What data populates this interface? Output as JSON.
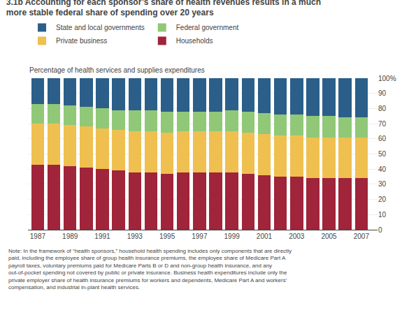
{
  "chart_data": {
    "type": "bar",
    "stacked": true,
    "title": "3.1b Accounting for each sponsor’s share of health revenues results in a much\nmore stable federal share of spending over 20 years",
    "ylabel": "Percentage of health services and supplies expenditures",
    "x": [
      1987,
      1988,
      1989,
      1990,
      1991,
      1992,
      1993,
      1994,
      1995,
      1996,
      1997,
      1998,
      1999,
      2000,
      2001,
      2002,
      2003,
      2004,
      2005,
      2006,
      2007
    ],
    "series": [
      {
        "name": "Households",
        "color": "#A0243A",
        "values": [
          43,
          43,
          42,
          41,
          40,
          39,
          38,
          38,
          37,
          38,
          38,
          38,
          38,
          37,
          36,
          35,
          35,
          34,
          34,
          34,
          34
        ]
      },
      {
        "name": "Private business",
        "color": "#EFC050",
        "values": [
          27,
          27,
          27,
          27,
          27,
          27,
          27,
          27,
          27,
          27,
          27,
          27,
          27,
          27,
          27,
          27,
          27,
          27,
          27,
          27,
          27
        ]
      },
      {
        "name": "Federal government",
        "color": "#90C878",
        "values": [
          13,
          13,
          13,
          13,
          13,
          13,
          14,
          14,
          14,
          13,
          13,
          13,
          14,
          14,
          14,
          14,
          14,
          14,
          14,
          13,
          13
        ]
      },
      {
        "name": "State and local governments",
        "color": "#2B5F8A",
        "values": [
          17,
          17,
          18,
          19,
          20,
          21,
          21,
          21,
          22,
          22,
          22,
          22,
          21,
          22,
          23,
          24,
          24,
          25,
          25,
          26,
          26
        ]
      }
    ],
    "xlim": [
      1986.4,
      2008.0
    ],
    "xticks": [
      1987,
      1989,
      1991,
      1993,
      1995,
      1997,
      1999,
      2001,
      2003,
      2005,
      2007
    ],
    "ylim": [
      0,
      100
    ],
    "yticks": [
      0,
      10,
      20,
      30,
      40,
      50,
      60,
      70,
      80,
      90,
      {
        "value": 100,
        "label": "100%"
      }
    ],
    "grid": true,
    "legend": "top",
    "annotations": [
      "Note: In the framework of “health sponsors,” household health spending includes only components that are directly\npaid, including the employee share of group health insurance premiums, the employee share of Medicare Part A\npayroll taxes, voluntary premiums paid for Medicare Parts B or D and non-group health insurance, and any\nout-of-pocket spending not covered by public or private insurance. Business health expenditures include only the\nprivate employer share of health insurance premiums for workers and dependents, Medicare Part A and workers’\ncompensation, and industrial in-plant health services."
    ]
  }
}
